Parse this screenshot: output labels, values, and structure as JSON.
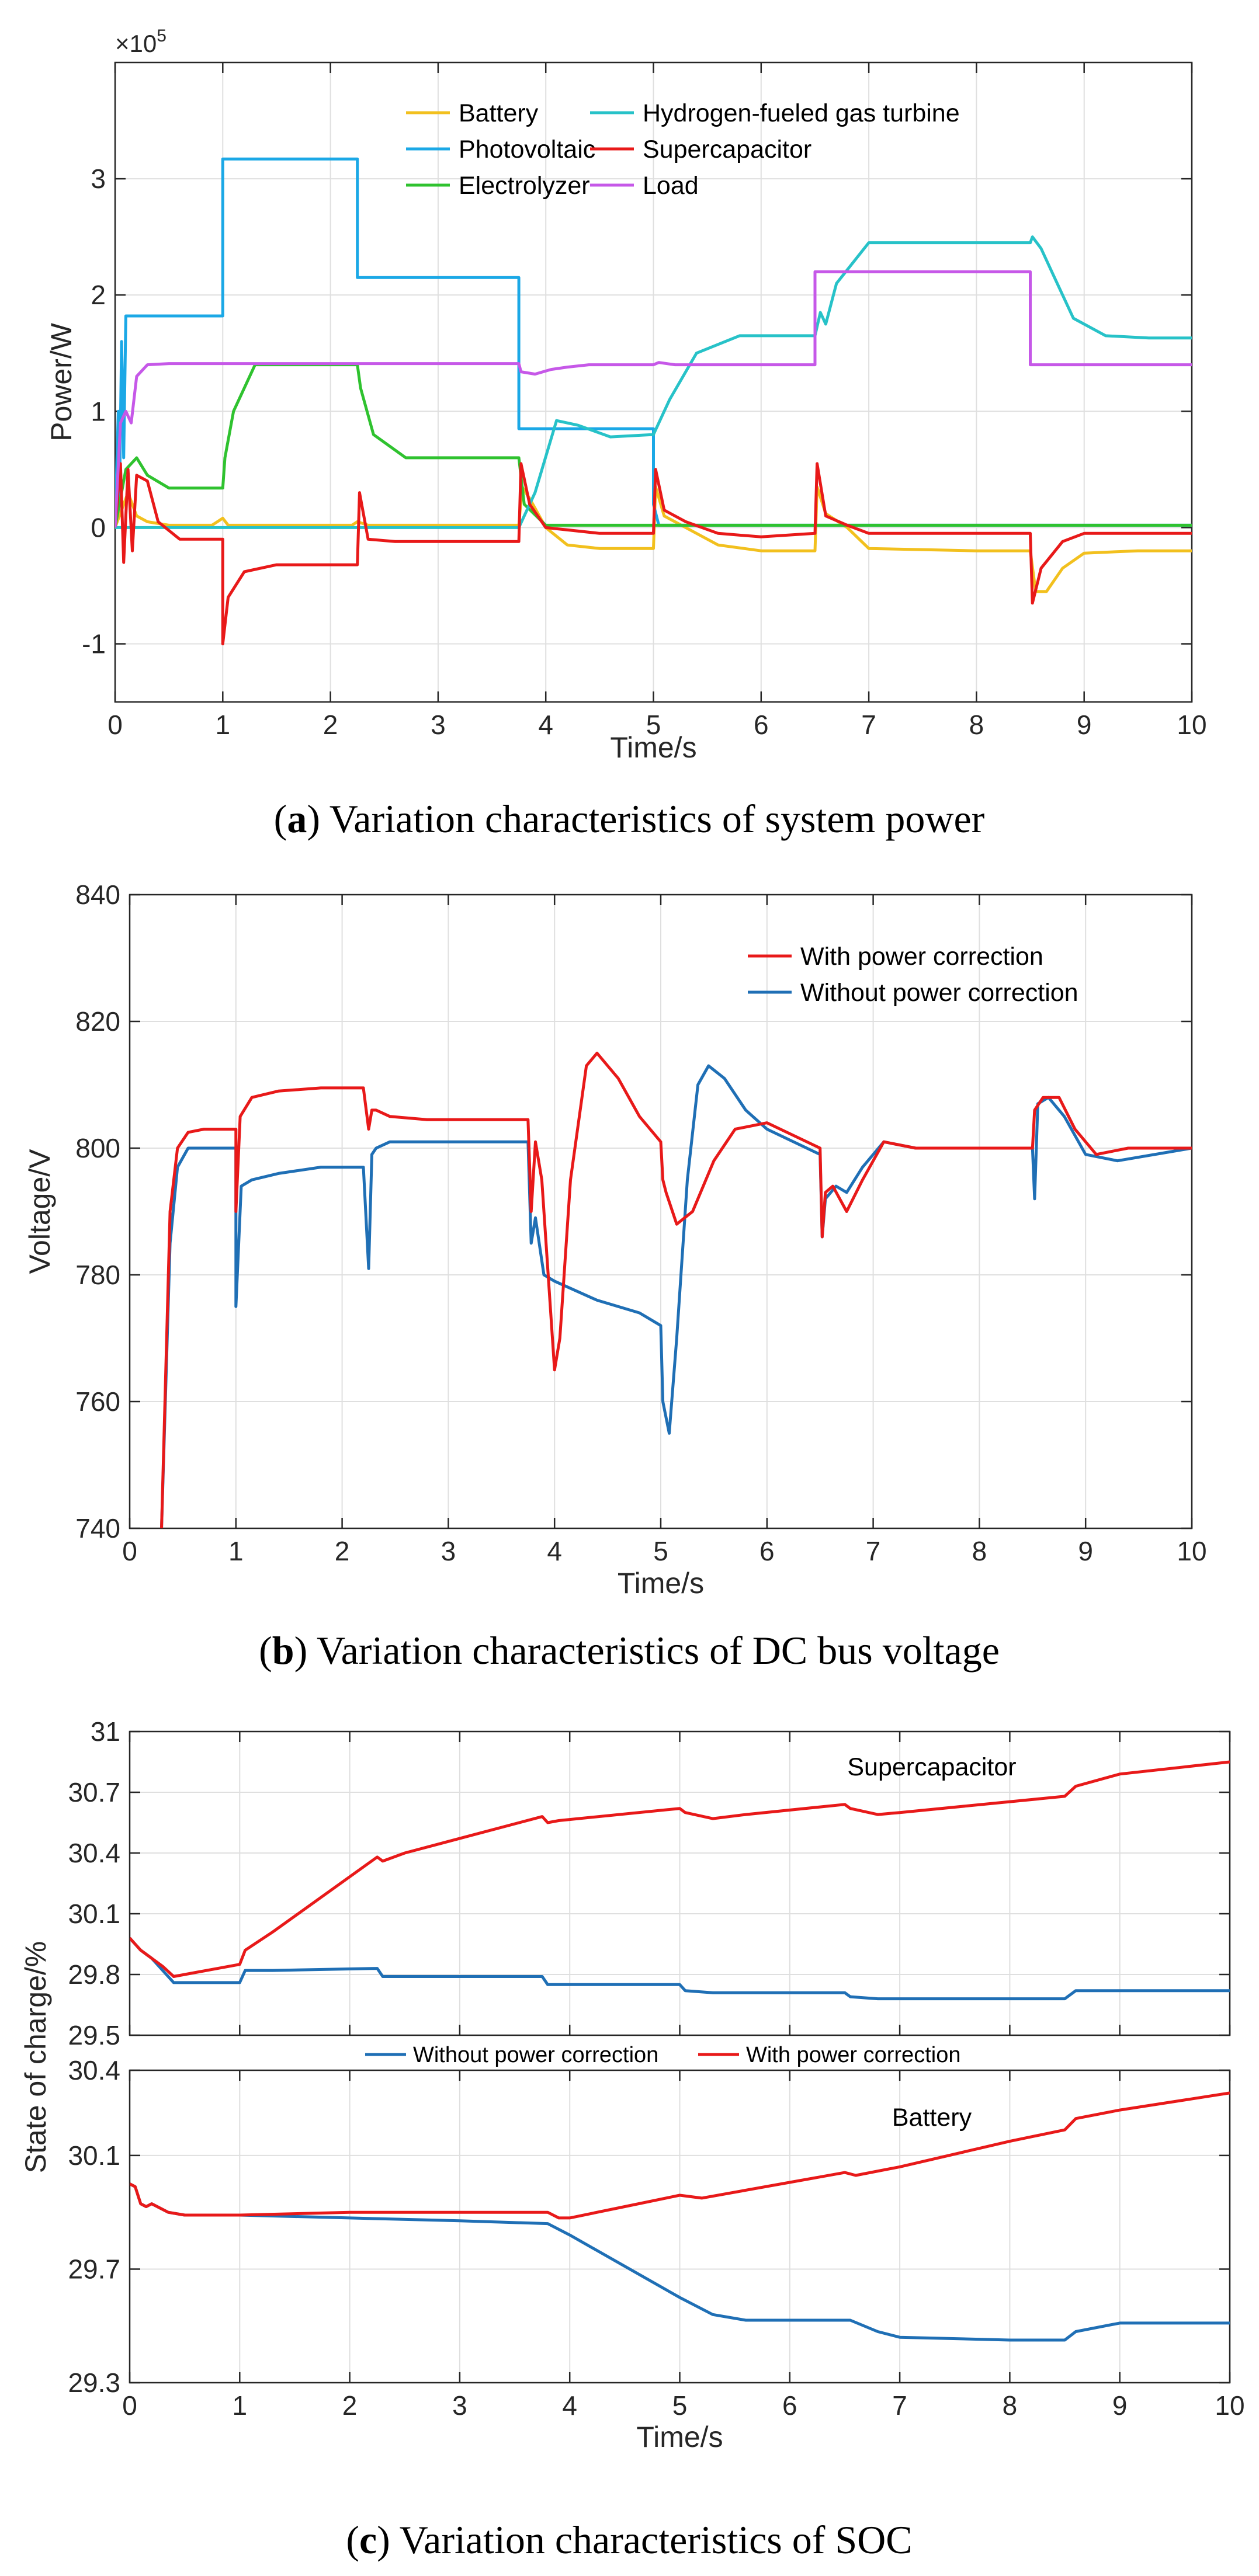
{
  "captions": [
    {
      "pre": "(",
      "letter": "a",
      "post": ") Variation characteristics of system power"
    },
    {
      "pre": "(",
      "letter": "b",
      "post": ") Variation characteristics of DC bus voltage"
    },
    {
      "pre": "(",
      "letter": "c",
      "post": ") Variation characteristics of SOC"
    }
  ],
  "chart_data": [
    {
      "id": "a",
      "type": "line",
      "title": "",
      "xlabel": "Time/s",
      "ylabel": "Power/W",
      "exponent": {
        "base": "×10",
        "power": "5"
      },
      "xlim": [
        0,
        10
      ],
      "ylim": [
        -1.5,
        4
      ],
      "xticks": [
        "0",
        "1",
        "2",
        "3",
        "4",
        "5",
        "6",
        "7",
        "8",
        "9",
        "10"
      ],
      "yticks": [
        "-1",
        "0",
        "1",
        "2",
        "3"
      ],
      "ytick_values": [
        -1,
        0,
        1,
        2,
        3
      ],
      "grid": true,
      "legend_position": "top",
      "series": [
        {
          "name": "Battery",
          "color": "#f2c01e",
          "x": [
            0,
            0.12,
            0.2,
            0.3,
            0.5,
            0.9,
            1.0,
            1.05,
            1.2,
            2.2,
            2.25,
            2.35,
            2.6,
            3.75,
            3.78,
            3.85,
            4.0,
            4.2,
            4.5,
            5.0,
            5.02,
            5.1,
            5.3,
            5.6,
            6.0,
            6.5,
            6.52,
            6.6,
            6.8,
            7.0,
            8.0,
            8.5,
            8.55,
            8.65,
            8.8,
            9.0,
            9.5,
            10
          ],
          "y": [
            0,
            0.3,
            0.1,
            0.05,
            0.02,
            0.02,
            0.08,
            0.02,
            0.02,
            0.02,
            0.05,
            0.02,
            0.02,
            0.02,
            0.35,
            0.25,
            0,
            -0.15,
            -0.18,
            -0.18,
            0.35,
            0.1,
            0,
            -0.15,
            -0.2,
            -0.2,
            0.35,
            0.12,
            0,
            -0.18,
            -0.2,
            -0.2,
            -0.55,
            -0.55,
            -0.35,
            -0.22,
            -0.2,
            -0.2
          ]
        },
        {
          "name": "Photovoltaic",
          "color": "#1ba8e6",
          "x": [
            0,
            0.03,
            0.04,
            0.06,
            0.08,
            0.1,
            0.12,
            1.0,
            1.0,
            2.25,
            2.25,
            3.75,
            3.75,
            5.0,
            5.0,
            5.05,
            6.5,
            6.5,
            10
          ],
          "y": [
            0,
            1.0,
            0.2,
            1.6,
            0.6,
            1.82,
            1.82,
            1.82,
            3.17,
            3.17,
            2.15,
            2.15,
            0.85,
            0.85,
            0.2,
            0.02,
            0.02,
            0.02,
            0.02
          ]
        },
        {
          "name": "Electrolyzer",
          "color": "#2fc22f",
          "x": [
            0,
            0.1,
            0.2,
            0.3,
            0.5,
            1.0,
            1.02,
            1.1,
            1.3,
            2.25,
            2.28,
            2.4,
            2.7,
            3.75,
            3.8,
            4.0,
            6.5,
            10
          ],
          "y": [
            0,
            0.5,
            0.6,
            0.45,
            0.34,
            0.34,
            0.6,
            1.0,
            1.4,
            1.4,
            1.2,
            0.8,
            0.6,
            0.6,
            0.2,
            0.02,
            0.02,
            0.02
          ]
        },
        {
          "name": "Hydrogen-fueled gas turbine",
          "color": "#27c2c8",
          "x": [
            0,
            3.75,
            3.9,
            4.1,
            4.3,
            4.6,
            5.0,
            5.15,
            5.4,
            5.8,
            6.5,
            6.55,
            6.6,
            6.7,
            7.0,
            7.5,
            8.5,
            8.52,
            8.6,
            8.7,
            8.9,
            9.2,
            9.6,
            10
          ],
          "y": [
            0,
            0,
            0.3,
            0.92,
            0.88,
            0.78,
            0.8,
            1.1,
            1.5,
            1.65,
            1.65,
            1.85,
            1.75,
            2.1,
            2.45,
            2.45,
            2.45,
            2.5,
            2.4,
            2.2,
            1.8,
            1.65,
            1.63,
            1.63
          ]
        },
        {
          "name": "Supercapacitor",
          "color": "#e81919",
          "x": [
            0,
            0.05,
            0.08,
            0.12,
            0.16,
            0.2,
            0.3,
            0.4,
            0.6,
            1.0,
            1.0,
            1.05,
            1.2,
            1.5,
            2.25,
            2.27,
            2.35,
            2.6,
            3.75,
            3.77,
            3.85,
            4.0,
            4.5,
            5.0,
            5.02,
            5.1,
            5.3,
            5.6,
            6.0,
            6.5,
            6.52,
            6.6,
            6.8,
            7.0,
            8.5,
            8.52,
            8.6,
            8.8,
            9.0,
            10
          ],
          "y": [
            0,
            0.55,
            -0.3,
            0.5,
            -0.2,
            0.45,
            0.4,
            0.05,
            -0.1,
            -0.1,
            -1.0,
            -0.6,
            -0.38,
            -0.32,
            -0.32,
            0.3,
            -0.1,
            -0.12,
            -0.12,
            0.55,
            0.2,
            0,
            -0.05,
            -0.05,
            0.5,
            0.15,
            0.05,
            -0.05,
            -0.08,
            -0.05,
            0.55,
            0.1,
            0.02,
            -0.05,
            -0.05,
            -0.65,
            -0.35,
            -0.12,
            -0.05,
            -0.05
          ]
        },
        {
          "name": "Load",
          "color": "#c658e8",
          "x": [
            0,
            0.05,
            0.1,
            0.15,
            0.2,
            0.3,
            0.5,
            3.75,
            3.77,
            3.9,
            4.05,
            4.2,
            4.4,
            5.0,
            5.05,
            5.2,
            6.5,
            6.5,
            8.5,
            8.5,
            10
          ],
          "y": [
            0,
            0.9,
            1.0,
            0.9,
            1.3,
            1.4,
            1.41,
            1.41,
            1.34,
            1.32,
            1.36,
            1.38,
            1.4,
            1.4,
            1.42,
            1.4,
            1.4,
            2.2,
            2.2,
            1.4,
            1.4
          ]
        }
      ]
    },
    {
      "id": "b",
      "type": "line",
      "title": "",
      "xlabel": "Time/s",
      "ylabel": "Voltage/V",
      "xlim": [
        0,
        10
      ],
      "ylim": [
        740,
        840
      ],
      "xticks": [
        "0",
        "1",
        "2",
        "3",
        "4",
        "5",
        "6",
        "7",
        "8",
        "9",
        "10"
      ],
      "yticks": [
        "740",
        "760",
        "780",
        "800",
        "820",
        "840"
      ],
      "ytick_values": [
        740,
        760,
        780,
        800,
        820,
        840
      ],
      "grid": true,
      "legend_position": "top-right",
      "series": [
        {
          "name": "With power correction",
          "color": "#e81919",
          "x": [
            0.3,
            0.38,
            0.45,
            0.55,
            0.7,
            1.0,
            1.0,
            1.04,
            1.15,
            1.4,
            1.8,
            2.2,
            2.25,
            2.28,
            2.32,
            2.45,
            2.8,
            3.2,
            3.75,
            3.78,
            3.82,
            3.88,
            4.0,
            4.05,
            4.15,
            4.3,
            4.4,
            4.6,
            4.8,
            5.0,
            5.02,
            5.05,
            5.15,
            5.3,
            5.5,
            5.7,
            6.0,
            6.5,
            6.52,
            6.55,
            6.62,
            6.75,
            6.9,
            7.1,
            7.4,
            8.0,
            8.5,
            8.52,
            8.6,
            8.75,
            8.9,
            9.1,
            9.4,
            10
          ],
          "y": [
            740,
            790,
            800,
            802.5,
            803,
            803,
            790,
            805,
            808,
            809,
            809.5,
            809.5,
            803,
            806,
            806,
            805,
            804.5,
            804.5,
            804.5,
            790,
            801,
            795,
            765,
            770,
            795,
            813,
            815,
            811,
            805,
            801,
            795,
            793,
            788,
            790,
            798,
            803,
            804,
            800,
            786,
            793,
            794,
            790,
            795,
            801,
            800,
            800,
            800,
            806,
            808,
            808,
            803,
            799,
            800,
            800
          ]
        },
        {
          "name": "Without power correction",
          "color": "#1f6fb5",
          "x": [
            0.3,
            0.38,
            0.45,
            0.55,
            0.7,
            1.0,
            1.0,
            1.05,
            1.15,
            1.4,
            1.8,
            2.2,
            2.25,
            2.28,
            2.32,
            2.45,
            2.8,
            3.2,
            3.75,
            3.78,
            3.82,
            3.9,
            4.0,
            4.4,
            4.8,
            5.0,
            5.02,
            5.08,
            5.15,
            5.25,
            5.35,
            5.45,
            5.6,
            5.8,
            6.0,
            6.5,
            6.52,
            6.55,
            6.65,
            6.75,
            6.9,
            7.1,
            7.4,
            8.0,
            8.5,
            8.52,
            8.55,
            8.65,
            8.8,
            9.0,
            9.3,
            10
          ],
          "y": [
            740,
            785,
            797,
            800,
            800,
            800,
            775,
            794,
            795,
            796,
            797,
            797,
            781,
            799,
            800,
            801,
            801,
            801,
            801,
            785,
            789,
            780,
            779,
            776,
            774,
            772,
            760,
            755,
            770,
            795,
            810,
            813,
            811,
            806,
            803,
            799,
            786,
            792,
            794,
            793,
            797,
            801,
            800,
            800,
            800,
            792,
            807,
            808,
            805,
            799,
            798,
            800
          ]
        }
      ]
    },
    {
      "id": "c",
      "type": "line",
      "title": "",
      "xlabel": "Time/s",
      "ylabel": "State of charge/%",
      "legend_position": "between-subplots",
      "legend": [
        "Without power correction",
        "With power correction"
      ],
      "subplots": [
        {
          "label": "Supercapacitor",
          "xlim": [
            0,
            10
          ],
          "ylim": [
            29.5,
            31.0
          ],
          "yticks": [
            "29.5",
            "29.8",
            "30.1",
            "30.4",
            "30.7",
            "31"
          ],
          "ytick_values": [
            29.5,
            29.8,
            30.1,
            30.4,
            30.7,
            31.0
          ],
          "grid": true,
          "series": [
            {
              "name": "Without power correction",
              "color": "#1f6fb5",
              "x": [
                0,
                0.05,
                0.1,
                0.15,
                0.2,
                0.3,
                0.4,
                0.6,
                1.0,
                1.05,
                1.3,
                2.25,
                2.3,
                2.5,
                3.75,
                3.8,
                3.9,
                5.0,
                5.05,
                5.3,
                6.5,
                6.55,
                6.8,
                8.5,
                8.6,
                9.0,
                10
              ],
              "y": [
                29.98,
                29.95,
                29.92,
                29.9,
                29.88,
                29.82,
                29.76,
                29.76,
                29.76,
                29.82,
                29.82,
                29.83,
                29.79,
                29.79,
                29.79,
                29.75,
                29.75,
                29.75,
                29.72,
                29.71,
                29.71,
                29.69,
                29.68,
                29.68,
                29.72,
                29.72,
                29.72
              ]
            },
            {
              "name": "With power correction",
              "color": "#e81919",
              "x": [
                0,
                0.05,
                0.1,
                0.15,
                0.2,
                0.3,
                0.4,
                0.6,
                1.0,
                1.05,
                1.3,
                2.25,
                2.3,
                2.5,
                3.75,
                3.8,
                3.9,
                5.0,
                5.05,
                5.3,
                5.6,
                6.5,
                6.55,
                6.8,
                7.0,
                8.5,
                8.6,
                9.0,
                10
              ],
              "y": [
                29.98,
                29.95,
                29.92,
                29.9,
                29.88,
                29.84,
                29.79,
                29.81,
                29.85,
                29.92,
                30.01,
                30.38,
                30.36,
                30.4,
                30.58,
                30.55,
                30.56,
                30.62,
                30.6,
                30.57,
                30.59,
                30.64,
                30.62,
                30.59,
                30.6,
                30.68,
                30.73,
                30.79,
                30.85
              ]
            }
          ]
        },
        {
          "label": "Battery",
          "xlim": [
            0,
            10
          ],
          "ylim": [
            29.3,
            30.4
          ],
          "yticks": [
            "29.3",
            "29.7",
            "30.1",
            "30.4"
          ],
          "ytick_values": [
            29.3,
            29.7,
            30.1,
            30.4
          ],
          "xticks": [
            "0",
            "1",
            "2",
            "3",
            "4",
            "5",
            "6",
            "7",
            "8",
            "9",
            "10"
          ],
          "grid": true,
          "series": [
            {
              "name": "Without power correction",
              "color": "#1f6fb5",
              "x": [
                0,
                0.05,
                0.1,
                0.15,
                0.2,
                0.35,
                0.5,
                1.0,
                2.0,
                3.0,
                3.8,
                4.0,
                4.5,
                5.0,
                5.3,
                5.6,
                6.5,
                6.55,
                6.8,
                7.0,
                8.0,
                8.5,
                8.6,
                9.0,
                10
              ],
              "y": [
                30.0,
                29.99,
                29.93,
                29.92,
                29.93,
                29.9,
                29.89,
                29.89,
                29.88,
                29.87,
                29.86,
                29.82,
                29.71,
                29.6,
                29.54,
                29.52,
                29.52,
                29.52,
                29.48,
                29.46,
                29.45,
                29.45,
                29.48,
                29.51,
                29.51
              ]
            },
            {
              "name": "With power correction",
              "color": "#e81919",
              "x": [
                0,
                0.05,
                0.1,
                0.15,
                0.2,
                0.35,
                0.5,
                1.0,
                2.0,
                3.0,
                3.8,
                3.9,
                4.0,
                4.5,
                5.0,
                5.2,
                6.5,
                6.6,
                7.0,
                8.0,
                8.5,
                8.6,
                9.0,
                10
              ],
              "y": [
                30.0,
                29.99,
                29.93,
                29.92,
                29.93,
                29.9,
                29.89,
                29.89,
                29.9,
                29.9,
                29.9,
                29.88,
                29.88,
                29.92,
                29.96,
                29.95,
                30.04,
                30.03,
                30.06,
                30.15,
                30.19,
                30.23,
                30.26,
                30.32
              ]
            }
          ]
        }
      ]
    }
  ]
}
